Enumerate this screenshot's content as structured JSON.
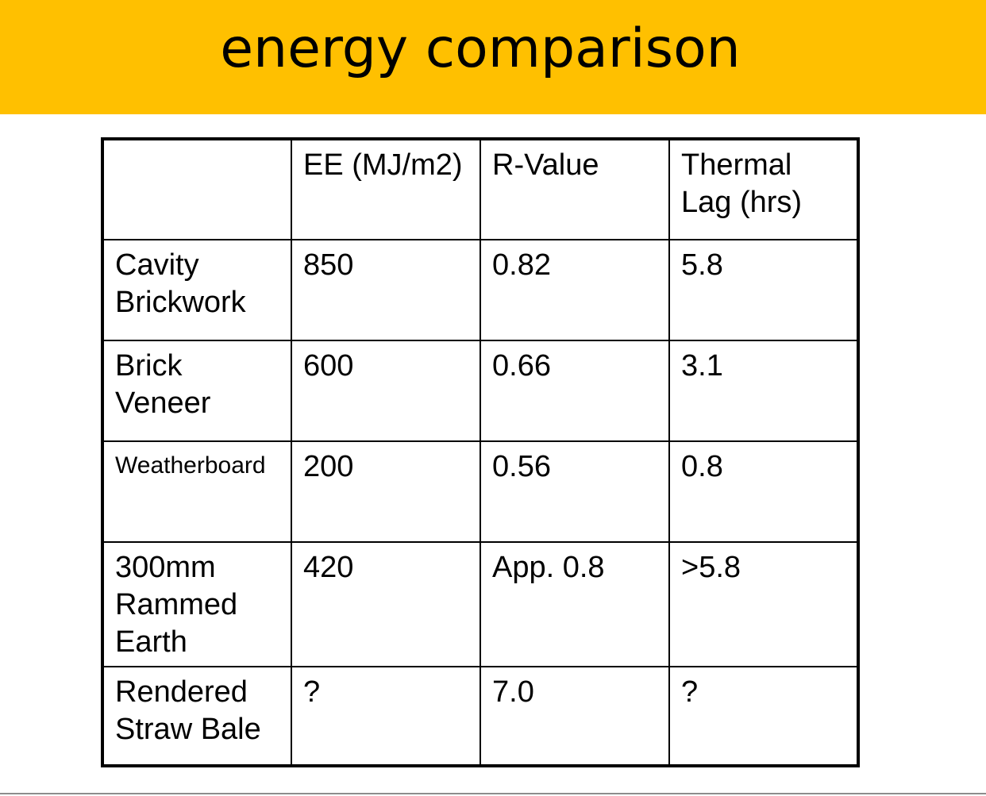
{
  "slide": {
    "title": "energy comparison"
  },
  "table": {
    "header": [
      "",
      "EE (MJ/m2)",
      "R-Value",
      "Thermal Lag (hrs)"
    ],
    "rows": [
      [
        "Cavity Brickwork",
        "850",
        "0.82",
        "5.8"
      ],
      [
        "Brick Veneer",
        "600",
        "0.66",
        "3.1"
      ],
      [
        "Weatherboard",
        "200",
        "0.56",
        "0.8"
      ],
      [
        "300mm Rammed Earth",
        "420",
        "App. 0.8",
        ">5.8"
      ],
      [
        "Rendered Straw Bale",
        "?",
        "7.0",
        "?"
      ]
    ]
  },
  "colors": {
    "title_bar": "#FFC000",
    "text": "#000000",
    "background": "#FFFFFF"
  }
}
